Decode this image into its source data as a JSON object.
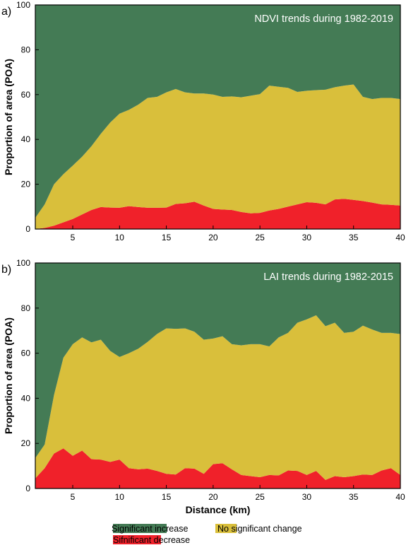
{
  "colors": {
    "increase": "#447b55",
    "nochange": "#d9bf3b",
    "decrease": "#f0212a"
  },
  "legend": {
    "increase_label": "Significant increase",
    "nochange_label": "No significant change",
    "decrease_label": "Sifnificant decrease"
  },
  "chart_data": [
    {
      "type": "area",
      "panel_label": "a)",
      "title": "NDVI trends during 1982-2019",
      "xlabel": "",
      "ylabel": "Proportion of area (POA)",
      "xlim": [
        1,
        40
      ],
      "ylim": [
        0,
        100
      ],
      "xticks": [
        5,
        10,
        15,
        20,
        25,
        30,
        35,
        40
      ],
      "yticks": [
        0,
        20,
        40,
        60,
        80,
        100
      ],
      "stacked": true,
      "legend_position": "bottom",
      "x": [
        1,
        2,
        3,
        4,
        5,
        6,
        7,
        8,
        9,
        10,
        11,
        12,
        13,
        14,
        15,
        16,
        17,
        18,
        19,
        20,
        21,
        22,
        23,
        24,
        25,
        26,
        27,
        28,
        29,
        30,
        31,
        32,
        33,
        34,
        35,
        36,
        37,
        38,
        39,
        40
      ],
      "series": [
        {
          "name": "Sifnificant decrease",
          "values": [
            0,
            0.5,
            1.5,
            3,
            4.5,
            6.5,
            8.5,
            9.8,
            9.6,
            9.5,
            10.2,
            9.8,
            9.5,
            9.5,
            9.6,
            11.2,
            11.5,
            12.2,
            10.5,
            9.0,
            8.7,
            8.5,
            7.6,
            7.0,
            7.2,
            8.3,
            9.0,
            10.0,
            11.0,
            12.0,
            11.7,
            11.0,
            13.2,
            13.5,
            13.0,
            12.5,
            11.8,
            11.0,
            10.8,
            10.5
          ]
        },
        {
          "name": "No significant change",
          "values": [
            5,
            10.5,
            18.5,
            21.5,
            23.8,
            25.8,
            28.5,
            32.7,
            37.9,
            42.0,
            43.0,
            45.7,
            49.0,
            49.5,
            51.4,
            51.3,
            49.5,
            48.3,
            50.0,
            51.0,
            50.3,
            50.7,
            51.2,
            52.5,
            53.0,
            55.7,
            54.5,
            53.0,
            50.2,
            49.7,
            50.3,
            51.2,
            50.1,
            50.5,
            51.5,
            46.5,
            46.2,
            47.5,
            47.7,
            47.5
          ]
        },
        {
          "name": "Significant increase",
          "values": [
            95,
            89,
            80,
            75.5,
            71.7,
            67.7,
            63,
            57.5,
            52.5,
            48.5,
            46.8,
            44.5,
            41.5,
            41,
            39,
            37.5,
            39,
            39.5,
            39.5,
            40,
            41,
            40.8,
            41.2,
            40.5,
            39.8,
            36,
            36.5,
            37,
            38.8,
            38.3,
            38,
            37.8,
            36.7,
            36,
            35.5,
            41,
            42,
            41.5,
            41.5,
            42
          ]
        }
      ]
    },
    {
      "type": "area",
      "panel_label": "b)",
      "title": "LAI trends during 1982-2015",
      "xlabel": "Distance (km)",
      "ylabel": "Proportion of area (POA)",
      "xlim": [
        1,
        40
      ],
      "ylim": [
        0,
        100
      ],
      "xticks": [
        5,
        10,
        15,
        20,
        25,
        30,
        35,
        40
      ],
      "yticks": [
        0,
        20,
        40,
        60,
        80,
        100
      ],
      "stacked": true,
      "legend_position": "bottom",
      "x": [
        1,
        2,
        3,
        4,
        5,
        6,
        7,
        8,
        9,
        10,
        11,
        12,
        13,
        14,
        15,
        16,
        17,
        18,
        19,
        20,
        21,
        22,
        23,
        24,
        25,
        26,
        27,
        28,
        29,
        30,
        31,
        32,
        33,
        34,
        35,
        36,
        37,
        38,
        39,
        40
      ],
      "series": [
        {
          "name": "Sifnificant decrease",
          "values": [
            4.5,
            9,
            15.5,
            17.8,
            14.5,
            16.8,
            13,
            12.8,
            11.8,
            12.8,
            9,
            8.5,
            8.8,
            7.8,
            6.5,
            6.2,
            9,
            8.8,
            6.5,
            10.8,
            11.2,
            8.5,
            6,
            5.5,
            5,
            6,
            5.8,
            8,
            7.8,
            6,
            7.8,
            3.8,
            5.5,
            5,
            5.5,
            6.2,
            6,
            8,
            9,
            6
          ]
        },
        {
          "name": "No significant change",
          "values": [
            9,
            10.5,
            26,
            40.2,
            49.5,
            50.2,
            51.8,
            53.2,
            49.2,
            45.5,
            51,
            53.5,
            56.2,
            60.7,
            64.5,
            64.6,
            62,
            60.7,
            59.5,
            55.7,
            56.3,
            55.5,
            57.5,
            58.5,
            59,
            57,
            61.2,
            61,
            65.7,
            69,
            69,
            68.2,
            68,
            64,
            64,
            66,
            64.5,
            61,
            60,
            62.5
          ]
        },
        {
          "name": "Significant increase",
          "values": [
            86.5,
            80.5,
            58.5,
            42,
            36,
            33,
            35.2,
            34,
            39,
            41.7,
            40,
            38,
            35,
            31.5,
            29,
            29.2,
            29,
            30.5,
            34,
            33.5,
            32.5,
            36,
            36.5,
            36,
            36,
            37,
            33,
            31,
            26.5,
            25,
            23.2,
            28,
            26.5,
            31,
            30.5,
            27.8,
            29.5,
            31,
            31,
            31.5
          ]
        }
      ]
    }
  ]
}
